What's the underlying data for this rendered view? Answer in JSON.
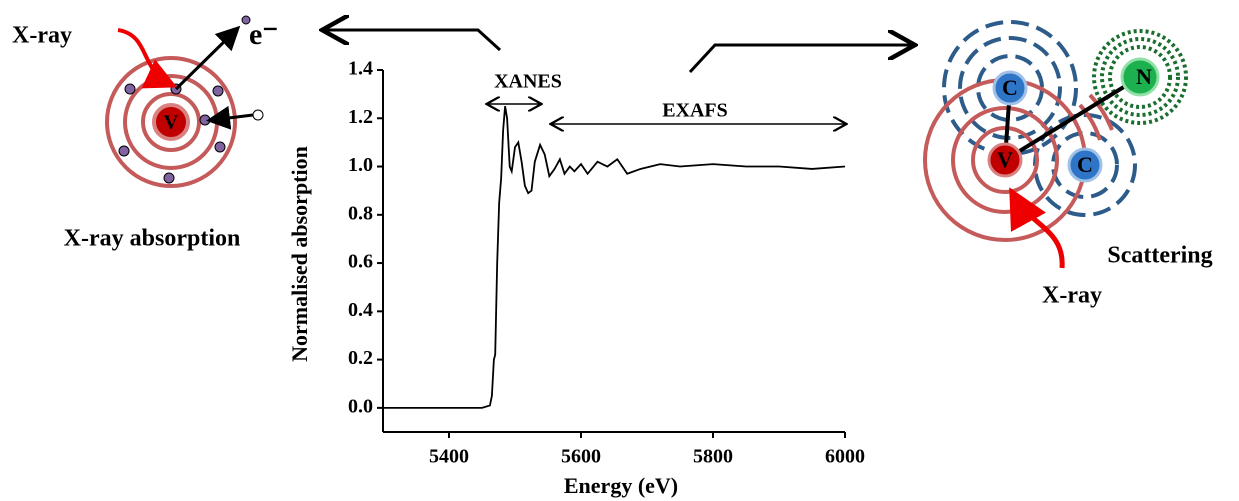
{
  "chart_data": {
    "type": "line",
    "x_label": "Energy (eV)",
    "y_label": "Normalised absorption",
    "x": [
      5300,
      5450,
      5462,
      5465,
      5468,
      5470,
      5473,
      5476,
      5479,
      5482,
      5485,
      5488,
      5492,
      5495,
      5500,
      5505,
      5510,
      5515,
      5520,
      5525,
      5530,
      5538,
      5545,
      5552,
      5560,
      5568,
      5575,
      5583,
      5590,
      5600,
      5610,
      5625,
      5640,
      5655,
      5670,
      5690,
      5720,
      5750,
      5800,
      5850,
      5900,
      5950,
      6000
    ],
    "series": [
      {
        "color": "#000000",
        "values": [
          0,
          0,
          0.01,
          0.05,
          0.2,
          0.22,
          0.6,
          0.85,
          0.95,
          1.15,
          1.25,
          1.2,
          1.0,
          0.98,
          1.08,
          1.1,
          1.02,
          0.92,
          0.89,
          0.9,
          1.02,
          1.09,
          1.05,
          0.96,
          0.99,
          1.03,
          0.97,
          1.0,
          0.98,
          1.01,
          0.97,
          1.02,
          1.0,
          1.03,
          0.97,
          0.99,
          1.01,
          1.0,
          1.01,
          1.0,
          1.0,
          0.99,
          1.0
        ]
      }
    ],
    "xlim": [
      5300,
      6000
    ],
    "xticks": [
      5400,
      5600,
      5800,
      6000
    ],
    "ylim": [
      -0.1,
      1.4
    ],
    "yticks": [
      {
        "value": 0,
        "label": "0.0"
      },
      0.2,
      0.4,
      0.6,
      0.8,
      {
        "value": 1,
        "label": "1.0"
      },
      1.2,
      1.4
    ],
    "annotations": {
      "xanes": "XANES",
      "exafs": "EXAFS"
    }
  },
  "diagrams": {
    "absorption": {
      "xray": "X-ray",
      "electron": "e⁻",
      "atom": "V",
      "caption": "X-ray absorption"
    },
    "scattering": {
      "carbon_top": "C",
      "carbon_right": "C",
      "nitrogen": "N",
      "atom": "V",
      "caption": "Scattering",
      "xray": "X-ray"
    }
  }
}
